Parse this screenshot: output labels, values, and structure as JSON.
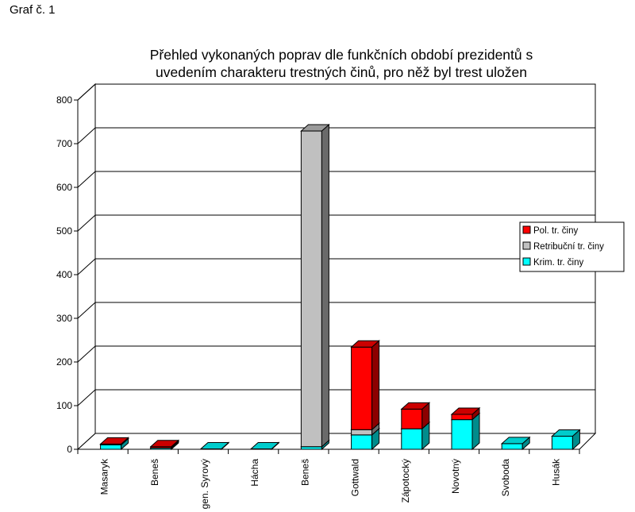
{
  "page_label": "Graf č. 1",
  "chart_data": {
    "type": "bar",
    "stacked": true,
    "three_d": true,
    "title_lines": [
      "Přehled vykonaných poprav dle funkčních období prezidentů s",
      "uvedením charakteru trestných činů, pro něž byl trest uložen"
    ],
    "categories": [
      "Masaryk",
      "Beneš",
      "gen. Syrový",
      "Hácha",
      "Beneš",
      "Gottwald",
      "Zápotocký",
      "Novotný",
      "Svoboda",
      "Husák"
    ],
    "series": [
      {
        "name": "Krim. tr. činy",
        "color": "#00ffff",
        "values": [
          10,
          3,
          1,
          1,
          6,
          33,
          47,
          68,
          13,
          30
        ]
      },
      {
        "name": "Retribuční tr. činy",
        "color": "#c0c0c0",
        "values": [
          0,
          0,
          0,
          0,
          723,
          12,
          0,
          0,
          0,
          0
        ]
      },
      {
        "name": "Pol. tr. činy",
        "color": "#ff0000",
        "values": [
          2,
          3,
          0,
          0,
          0,
          189,
          45,
          12,
          0,
          0
        ]
      }
    ],
    "legend_order": [
      "Pol. tr. činy",
      "Retribuční tr. činy",
      "Krim. tr. činy"
    ],
    "legend_position": "right",
    "ylim": [
      0,
      800
    ],
    "y_ticks": [
      0,
      100,
      200,
      300,
      400,
      500,
      600,
      700,
      800
    ],
    "grid": true
  }
}
